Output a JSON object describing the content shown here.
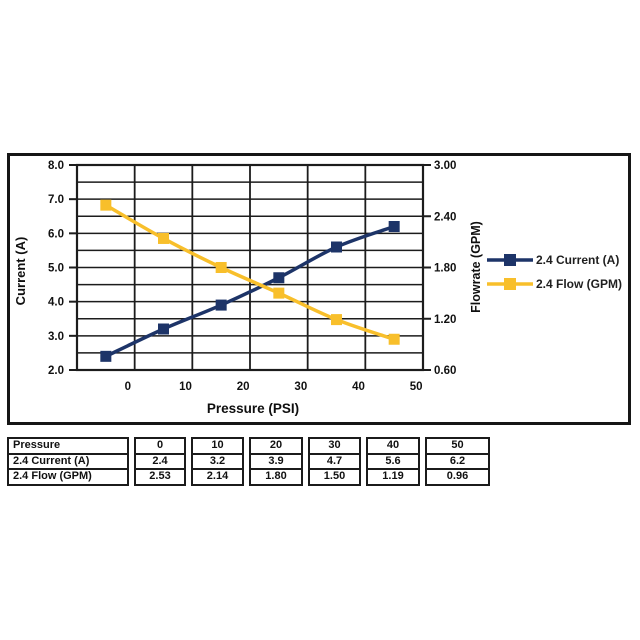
{
  "chart_data": {
    "type": "line",
    "x": [
      0,
      10,
      20,
      30,
      40,
      50
    ],
    "xlabel": "Pressure (PSI)",
    "x_tick_labels": [
      "0",
      "10",
      "20",
      "30",
      "40",
      "50"
    ],
    "x_axis": {
      "min": -5,
      "max": 55,
      "grid_interval": 10
    },
    "left_axis": {
      "label": "Current (A)",
      "min": 2.0,
      "max": 8.0,
      "major": 1.0,
      "minor": 0.5,
      "tick_labels": [
        "8.0",
        "7.0",
        "6.0",
        "5.0",
        "4.0",
        "3.0",
        "2.0"
      ]
    },
    "right_axis": {
      "label": "Flowrate (GPM)",
      "min": 0.6,
      "max": 3.0,
      "major": 0.6,
      "tick_labels": [
        "3.00",
        "2.40",
        "1.80",
        "1.20",
        "0.60"
      ]
    },
    "grid": true,
    "legend_position": "right",
    "series": [
      {
        "name": "2.4 Current (A)",
        "axis": "left",
        "color": "#1D3468",
        "marker": "square",
        "values": [
          2.4,
          3.2,
          3.9,
          4.7,
          5.6,
          6.2
        ]
      },
      {
        "name": "2.4 Flow (GPM)",
        "axis": "right",
        "color": "#F8BF2B",
        "marker": "square",
        "values": [
          2.53,
          2.14,
          1.8,
          1.5,
          1.19,
          0.96
        ]
      }
    ]
  },
  "table": {
    "rows": [
      {
        "label": "Pressure",
        "values": [
          "0",
          "10",
          "20",
          "30",
          "40",
          "50"
        ]
      },
      {
        "label": "2.4 Current (A)",
        "values": [
          "2.4",
          "3.2",
          "3.9",
          "4.7",
          "5.6",
          "6.2"
        ]
      },
      {
        "label": "2.4 Flow (GPM)",
        "values": [
          "2.53",
          "2.14",
          "1.80",
          "1.50",
          "1.19",
          "0.96"
        ]
      }
    ]
  },
  "colors": {
    "navy": "#1D3468",
    "gold": "#F8BF2B",
    "grid": "#1C1C1C",
    "text": "#111111"
  }
}
